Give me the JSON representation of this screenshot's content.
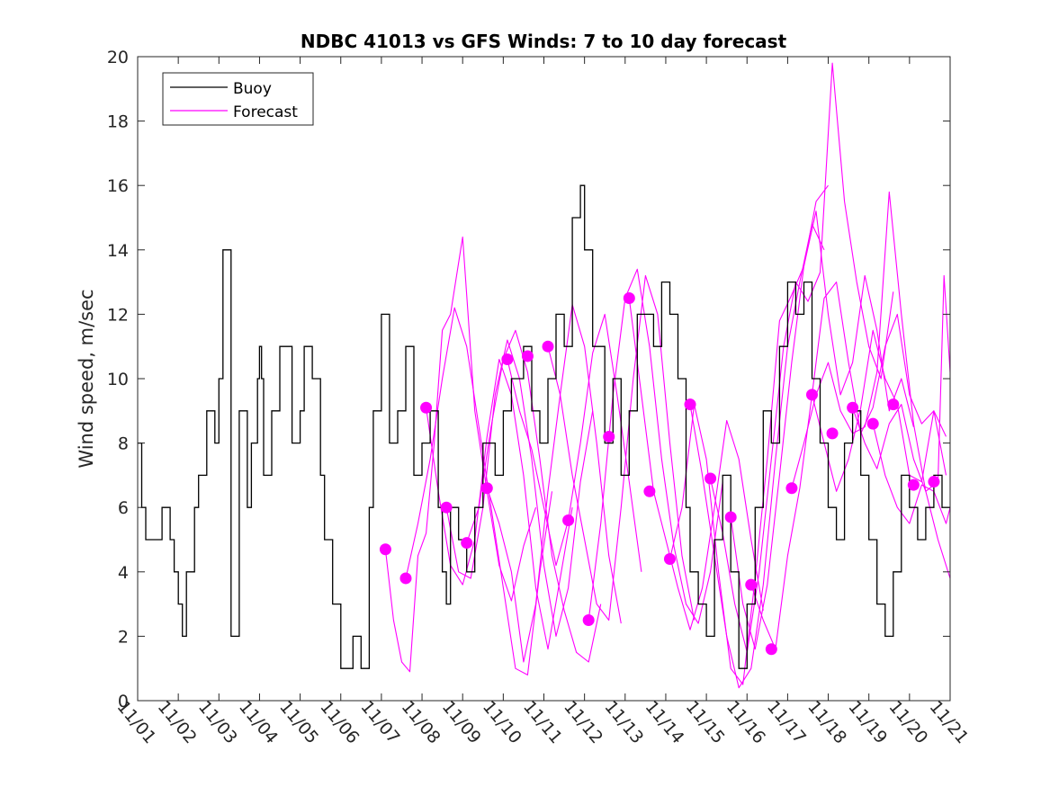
{
  "chart_data": {
    "type": "line",
    "title": "NDBC 41013 vs GFS Winds: 7 to 10 day forecast",
    "xlabel": "",
    "ylabel": "Wind speed, m/sec",
    "xlim": [
      0,
      20
    ],
    "ylim": [
      0,
      20
    ],
    "x_ticks": [
      0,
      1,
      2,
      3,
      4,
      5,
      6,
      7,
      8,
      9,
      10,
      11,
      12,
      13,
      14,
      15,
      16,
      17,
      18,
      19,
      20
    ],
    "x_tick_labels": [
      "11/01",
      "11/02",
      "11/03",
      "11/04",
      "11/05",
      "11/06",
      "11/07",
      "11/08",
      "11/09",
      "11/10",
      "11/11",
      "11/12",
      "11/13",
      "11/14",
      "11/15",
      "11/16",
      "11/17",
      "11/18",
      "11/19",
      "11/20",
      "11/21"
    ],
    "y_ticks": [
      0,
      2,
      4,
      6,
      8,
      10,
      12,
      14,
      16,
      18,
      20
    ],
    "y_tick_labels": [
      "0",
      "2",
      "4",
      "6",
      "8",
      "10",
      "12",
      "14",
      "16",
      "18",
      "20"
    ],
    "legend": {
      "position": "top-left",
      "entries": [
        {
          "label": "Buoy",
          "color": "#000000"
        },
        {
          "label": "Forecast",
          "color": "#ff00ff"
        }
      ]
    },
    "colors": {
      "buoy": "#000000",
      "forecast": "#ff00ff",
      "axis": "#262626",
      "background": "#ffffff"
    },
    "series": [
      {
        "name": "Buoy",
        "color": "#000000",
        "x": [
          0.0,
          0.1,
          0.2,
          0.4,
          0.6,
          0.8,
          0.9,
          1.0,
          1.1,
          1.2,
          1.4,
          1.5,
          1.7,
          1.9,
          2.0,
          2.1,
          2.3,
          2.5,
          2.7,
          2.8,
          2.95,
          3.0,
          3.05,
          3.1,
          3.3,
          3.5,
          3.8,
          4.0,
          4.1,
          4.3,
          4.5,
          4.6,
          4.8,
          5.0,
          5.1,
          5.3,
          5.5,
          5.7,
          5.8,
          6.0,
          6.2,
          6.4,
          6.6,
          6.8,
          7.0,
          7.2,
          7.4,
          7.5,
          7.6,
          7.7,
          7.9,
          8.1,
          8.3,
          8.5,
          8.8,
          9.0,
          9.2,
          9.5,
          9.7,
          9.9,
          10.1,
          10.3,
          10.5,
          10.7,
          10.9,
          11.0,
          11.2,
          11.5,
          11.7,
          11.9,
          12.1,
          12.3,
          12.5,
          12.7,
          12.9,
          13.1,
          13.3,
          13.5,
          13.6,
          13.8,
          14.0,
          14.2,
          14.4,
          14.6,
          14.8,
          15.0,
          15.2,
          15.4,
          15.6,
          15.8,
          16.0,
          16.2,
          16.4,
          16.6,
          16.8,
          17.0,
          17.2,
          17.4,
          17.6,
          17.8,
          18.0,
          18.2,
          18.4,
          18.6,
          18.8,
          19.0,
          19.2,
          19.4,
          19.6,
          19.8,
          20.0
        ],
        "values": [
          8,
          6,
          5,
          5,
          6,
          5,
          4,
          3,
          2,
          4,
          6,
          7,
          9,
          8,
          10,
          14,
          2,
          9,
          6,
          8,
          10,
          11,
          10,
          7,
          9,
          11,
          8,
          9,
          11,
          10,
          7,
          5,
          3,
          1,
          1,
          2,
          1,
          6,
          9,
          12,
          8,
          9,
          11,
          7,
          8,
          9,
          6,
          4,
          3,
          6,
          5,
          4,
          6,
          8,
          7,
          9,
          10,
          11,
          9,
          8,
          10,
          12,
          11,
          15,
          16,
          14,
          11,
          8,
          10,
          7,
          9,
          12,
          12,
          11,
          13,
          12,
          10,
          6,
          4,
          3,
          2,
          5,
          7,
          4,
          1,
          3,
          6,
          9,
          8,
          11,
          13,
          12,
          13,
          10,
          8,
          6,
          5,
          8,
          9,
          7,
          5,
          3,
          2,
          4,
          7,
          6,
          5,
          6,
          7,
          6,
          6
        ]
      },
      {
        "name": "Forecast",
        "color": "#ff00ff",
        "markers": [
          {
            "x": 6.1,
            "y": 4.7
          },
          {
            "x": 6.6,
            "y": 3.8
          },
          {
            "x": 7.1,
            "y": 9.1
          },
          {
            "x": 7.6,
            "y": 6.0
          },
          {
            "x": 8.1,
            "y": 4.9
          },
          {
            "x": 8.6,
            "y": 6.6
          },
          {
            "x": 9.1,
            "y": 10.6
          },
          {
            "x": 9.6,
            "y": 10.7
          },
          {
            "x": 10.1,
            "y": 11.0
          },
          {
            "x": 10.6,
            "y": 5.6
          },
          {
            "x": 11.1,
            "y": 2.5
          },
          {
            "x": 11.6,
            "y": 8.2
          },
          {
            "x": 12.1,
            "y": 12.5
          },
          {
            "x": 12.6,
            "y": 6.5
          },
          {
            "x": 13.1,
            "y": 4.4
          },
          {
            "x": 13.6,
            "y": 9.2
          },
          {
            "x": 14.1,
            "y": 6.9
          },
          {
            "x": 14.6,
            "y": 5.7
          },
          {
            "x": 15.1,
            "y": 3.6
          },
          {
            "x": 15.6,
            "y": 1.6
          },
          {
            "x": 16.1,
            "y": 6.6
          },
          {
            "x": 16.6,
            "y": 9.5
          },
          {
            "x": 17.1,
            "y": 8.3
          },
          {
            "x": 17.6,
            "y": 9.1
          },
          {
            "x": 18.1,
            "y": 8.6
          },
          {
            "x": 18.6,
            "y": 9.2
          },
          {
            "x": 19.1,
            "y": 6.7
          },
          {
            "x": 19.6,
            "y": 6.8
          }
        ],
        "runs": [
          {
            "x": [
              6.1,
              6.3,
              6.5,
              6.7,
              6.9,
              7.1,
              7.3,
              7.5,
              7.7,
              8.0,
              8.3,
              8.6,
              8.9,
              9.2,
              9.5,
              9.8
            ],
            "values": [
              4.7,
              2.5,
              1.2,
              0.9,
              4.5,
              5.2,
              8.0,
              11.5,
              12.0,
              14.4,
              9.0,
              6.5,
              4.2,
              3.1,
              4.8,
              6.0
            ]
          },
          {
            "x": [
              6.6,
              6.9,
              7.2,
              7.5,
              7.8,
              8.1,
              8.4,
              8.7,
              9.0,
              9.3,
              9.6,
              9.9,
              10.2
            ],
            "values": [
              3.8,
              5.5,
              7.5,
              10.0,
              12.2,
              11.0,
              8.5,
              6.0,
              3.5,
              1.0,
              0.8,
              4.0,
              6.5
            ]
          },
          {
            "x": [
              7.1,
              7.4,
              7.7,
              8.0,
              8.3,
              8.6,
              8.9,
              9.2,
              9.5,
              9.8,
              10.1,
              10.4,
              10.7
            ],
            "values": [
              9.1,
              6.5,
              4.2,
              3.6,
              5.0,
              8.2,
              10.6,
              9.5,
              7.0,
              3.5,
              1.6,
              3.8,
              6.0
            ]
          },
          {
            "x": [
              7.6,
              7.9,
              8.2,
              8.5,
              8.8,
              9.1,
              9.4,
              9.7,
              10.0,
              10.3,
              10.6,
              10.9,
              11.2
            ],
            "values": [
              6.0,
              4.0,
              3.8,
              6.0,
              9.5,
              11.2,
              10.0,
              7.5,
              4.2,
              2.0,
              3.5,
              6.8,
              9.0
            ]
          },
          {
            "x": [
              8.1,
              8.4,
              8.7,
              9.0,
              9.3,
              9.6,
              9.9,
              10.2,
              10.5,
              10.8,
              11.1,
              11.4
            ],
            "values": [
              4.9,
              6.0,
              8.5,
              10.6,
              11.5,
              10.2,
              7.5,
              4.5,
              2.8,
              1.5,
              1.2,
              3.0
            ]
          },
          {
            "x": [
              8.6,
              8.9,
              9.2,
              9.5,
              9.8,
              10.1,
              10.4,
              10.7,
              11.0,
              11.3,
              11.6,
              11.9
            ],
            "values": [
              6.6,
              5.5,
              4.0,
              1.2,
              3.0,
              6.5,
              9.5,
              12.3,
              11.0,
              8.0,
              4.5,
              2.4
            ]
          },
          {
            "x": [
              9.1,
              9.4,
              9.7,
              10.0,
              10.3,
              10.6,
              10.9,
              11.2,
              11.5,
              11.8,
              12.1,
              12.4
            ],
            "values": [
              10.6,
              9.0,
              7.8,
              6.0,
              4.2,
              5.6,
              8.0,
              10.8,
              12.0,
              9.5,
              6.8,
              4.0
            ]
          },
          {
            "x": [
              10.1,
              10.4,
              10.7,
              11.0,
              11.3,
              11.6,
              11.9,
              12.2,
              12.5,
              12.8,
              13.1,
              13.4,
              13.7
            ],
            "values": [
              11.0,
              9.5,
              7.0,
              5.0,
              3.0,
              2.5,
              6.0,
              10.0,
              13.2,
              12.0,
              8.0,
              4.5,
              2.5
            ]
          },
          {
            "x": [
              11.1,
              11.4,
              11.7,
              12.0,
              12.3,
              12.6,
              12.9,
              13.2,
              13.5,
              13.8,
              14.1,
              14.4
            ],
            "values": [
              2.5,
              5.5,
              9.5,
              12.5,
              13.4,
              11.0,
              7.5,
              4.8,
              3.0,
              2.4,
              4.0,
              6.8
            ]
          },
          {
            "x": [
              12.1,
              12.4,
              12.7,
              13.0,
              13.3,
              13.6,
              13.9,
              14.2,
              14.5,
              14.8,
              15.1,
              15.4
            ],
            "values": [
              12.5,
              9.5,
              6.5,
              5.0,
              3.5,
              2.2,
              3.5,
              6.0,
              8.7,
              7.5,
              5.0,
              2.8
            ]
          },
          {
            "x": [
              13.1,
              13.4,
              13.7,
              14.0,
              14.3,
              14.6,
              14.9,
              15.2,
              15.5,
              15.8,
              16.1,
              16.4,
              16.7,
              17.0
            ],
            "values": [
              4.4,
              6.0,
              9.2,
              7.5,
              4.0,
              1.0,
              0.5,
              3.8,
              7.5,
              11.8,
              12.6,
              13.5,
              15.5,
              16.0
            ]
          },
          {
            "x": [
              13.6,
              13.9,
              14.2,
              14.5,
              14.8,
              15.1,
              15.4,
              15.7,
              16.0,
              16.3,
              16.6,
              16.9
            ],
            "values": [
              9.2,
              7.0,
              4.5,
              2.0,
              0.4,
              1.0,
              3.6,
              7.5,
              11.0,
              13.0,
              14.8,
              14.0
            ]
          },
          {
            "x": [
              14.1,
              14.4,
              14.7,
              15.0,
              15.3,
              15.6,
              15.9,
              16.2,
              16.5,
              16.8,
              17.1,
              17.4,
              17.7,
              18.0,
              18.3,
              18.6
            ],
            "values": [
              6.9,
              5.2,
              3.0,
              1.5,
              4.0,
              7.5,
              11.0,
              13.0,
              12.4,
              13.3,
              19.8,
              15.5,
              13.0,
              11.0,
              10.0,
              12.7
            ]
          },
          {
            "x": [
              14.6,
              14.9,
              15.2,
              15.5,
              15.8,
              16.1,
              16.4,
              16.7,
              17.0,
              17.3,
              17.6,
              17.9,
              18.2,
              18.5,
              18.8,
              19.1
            ],
            "values": [
              5.7,
              3.0,
              1.6,
              3.6,
              7.0,
              10.5,
              13.5,
              15.2,
              12.0,
              9.5,
              10.5,
              13.2,
              11.5,
              9.0,
              10.0,
              8.5
            ]
          },
          {
            "x": [
              15.1,
              15.4,
              15.7,
              16.0,
              16.3,
              16.6,
              16.9,
              17.2,
              17.5,
              17.8,
              18.1,
              18.4,
              18.7,
              19.0,
              19.3,
              19.6,
              19.9
            ],
            "values": [
              3.6,
              2.5,
              1.6,
              4.5,
              6.6,
              9.5,
              12.5,
              13.0,
              10.5,
              8.3,
              9.1,
              11.0,
              12.0,
              9.5,
              8.6,
              9.0,
              7.0
            ]
          },
          {
            "x": [
              16.1,
              16.4,
              16.7,
              17.0,
              17.3,
              17.6,
              17.9,
              18.2,
              18.5,
              18.8,
              19.1,
              19.4,
              19.7,
              20.0
            ],
            "values": [
              6.6,
              8.0,
              9.5,
              10.5,
              9.0,
              8.3,
              8.5,
              10.2,
              15.8,
              12.0,
              8.6,
              6.5,
              5.0,
              3.8
            ]
          },
          {
            "x": [
              16.6,
              16.9,
              17.2,
              17.5,
              17.8,
              18.1,
              18.4,
              18.7,
              19.0,
              19.3,
              19.6,
              19.9
            ],
            "values": [
              9.5,
              8.0,
              6.5,
              7.5,
              9.1,
              11.5,
              10.0,
              9.2,
              7.0,
              6.8,
              9.0,
              8.2
            ]
          },
          {
            "x": [
              17.6,
              17.9,
              18.2,
              18.5,
              18.8,
              19.1,
              19.4,
              19.7,
              19.85,
              20.0
            ],
            "values": [
              9.1,
              8.0,
              7.2,
              8.6,
              9.2,
              7.5,
              6.5,
              6.8,
              13.2,
              10.2
            ]
          },
          {
            "x": [
              18.1,
              18.4,
              18.7,
              19.0,
              19.3,
              19.6,
              19.9,
              20.0
            ],
            "values": [
              8.6,
              7.0,
              6.0,
              5.5,
              6.7,
              6.5,
              5.5,
              6.0
            ]
          }
        ]
      }
    ]
  }
}
